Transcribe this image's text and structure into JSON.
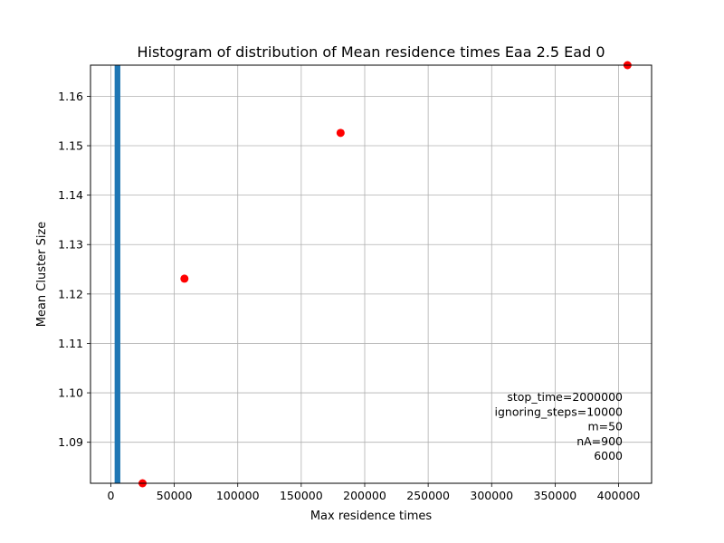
{
  "chart_data": {
    "type": "scatter",
    "title": "Histogram of distribution of Mean residence times Eaa 2.5 Ead 0",
    "xlabel": "Max residence times",
    "ylabel": "Mean Cluster Size",
    "xlim": [
      -16000,
      426000
    ],
    "ylim": [
      1.0817,
      1.1663
    ],
    "x_ticks": [
      0,
      50000,
      100000,
      150000,
      200000,
      250000,
      300000,
      350000,
      400000
    ],
    "x_tick_labels": [
      "0",
      "50000",
      "100000",
      "150000",
      "200000",
      "250000",
      "300000",
      "350000",
      "400000"
    ],
    "y_ticks": [
      1.09,
      1.1,
      1.11,
      1.12,
      1.13,
      1.14,
      1.15,
      1.16
    ],
    "y_tick_labels": [
      "1.09",
      "1.10",
      "1.11",
      "1.12",
      "1.13",
      "1.14",
      "1.15",
      "1.16"
    ],
    "grid": true,
    "bar": {
      "x_start": 3000,
      "x_end": 7500,
      "color": "#1f77b4"
    },
    "points": {
      "color": "#ff0000",
      "x": [
        25000,
        58000,
        181000,
        407000
      ],
      "y": [
        1.0817,
        1.1231,
        1.1526,
        1.1663
      ]
    },
    "annotation": [
      "stop_time=2000000",
      "ignoring_steps=10000",
      "m=50",
      "nA=900",
      "6000"
    ],
    "annotation_placement": "bottom-right"
  }
}
